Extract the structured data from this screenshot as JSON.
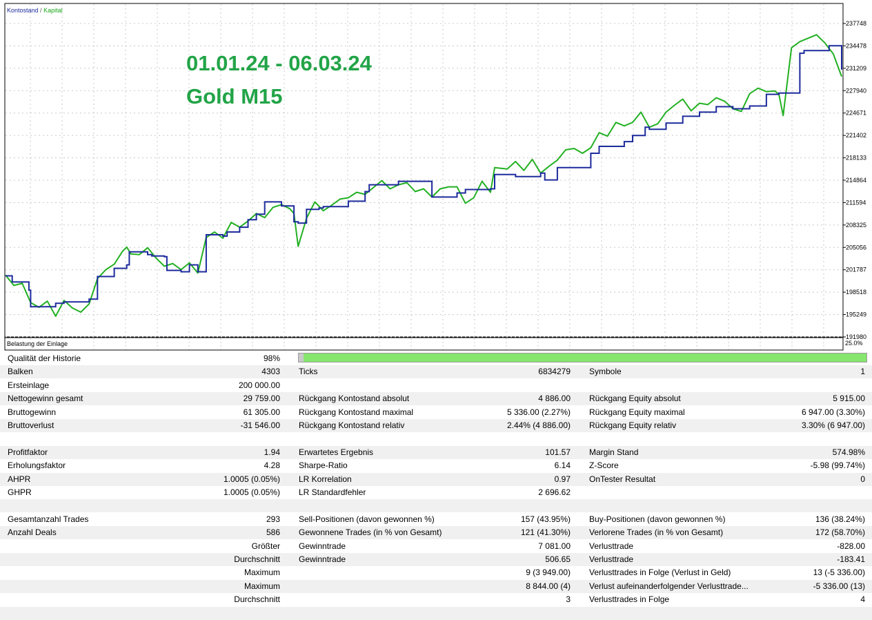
{
  "chart": {
    "legend_balance": "Kontostand",
    "legend_sep": " / ",
    "legend_equity": "Kapital",
    "overlay_line1": "01.01.24 - 06.03.24",
    "overlay_line2": "Gold M15",
    "load_label": "Belastung der Einlage",
    "load_pct": "25.0%",
    "colors": {
      "balance": "#1c2a9c",
      "equity": "#22b022",
      "overlay": "#22a447",
      "legend_equity": "#1aa51a",
      "legend_balance": "#1c2a9c"
    }
  },
  "chart_data": {
    "type": "line",
    "yticks": [
      "237748",
      "234478",
      "231209",
      "227940",
      "224671",
      "221402",
      "218133",
      "214864",
      "211594",
      "208325",
      "205056",
      "201787",
      "198518",
      "195249",
      "191980"
    ],
    "ylim": [
      191980,
      237748
    ],
    "series": [
      {
        "name": "Kontostand",
        "x": [
          0,
          0.008,
          0.028,
          0.03,
          0.04,
          0.06,
          0.07,
          0.1,
          0.11,
          0.13,
          0.145,
          0.148,
          0.17,
          0.175,
          0.19,
          0.193,
          0.21,
          0.22,
          0.23,
          0.24,
          0.26,
          0.265,
          0.28,
          0.29,
          0.3,
          0.31,
          0.33,
          0.345,
          0.35,
          0.36,
          0.375,
          0.38,
          0.41,
          0.43,
          0.435,
          0.47,
          0.5,
          0.51,
          0.54,
          0.55,
          0.58,
          0.585,
          0.61,
          0.64,
          0.645,
          0.66,
          0.7,
          0.71,
          0.74,
          0.75,
          0.765,
          0.77,
          0.79,
          0.81,
          0.83,
          0.85,
          0.87,
          0.89,
          0.91,
          0.925,
          0.95,
          0.955,
          0.985,
          1
        ],
        "y": [
          200900,
          200000,
          198800,
          196400,
          196400,
          196900,
          197100,
          197500,
          200800,
          202000,
          202500,
          204400,
          204000,
          203800,
          203700,
          201700,
          201500,
          202500,
          201500,
          206900,
          206700,
          207300,
          208000,
          209100,
          209900,
          211700,
          211100,
          208800,
          208600,
          210600,
          210800,
          211000,
          211800,
          213200,
          214200,
          214700,
          214700,
          212400,
          213000,
          213500,
          213600,
          215700,
          215400,
          215900,
          214900,
          216700,
          218800,
          219800,
          220500,
          221400,
          222600,
          222300,
          223200,
          224200,
          224800,
          225600,
          225300,
          225700,
          227400,
          227600,
          233400,
          233800,
          234500,
          231000
        ]
      },
      {
        "name": "Kapital",
        "x": [
          0,
          0.01,
          0.02,
          0.03,
          0.04,
          0.05,
          0.06,
          0.07,
          0.08,
          0.09,
          0.1,
          0.11,
          0.12,
          0.13,
          0.14,
          0.145,
          0.15,
          0.16,
          0.17,
          0.18,
          0.19,
          0.2,
          0.21,
          0.22,
          0.23,
          0.24,
          0.25,
          0.26,
          0.27,
          0.28,
          0.29,
          0.3,
          0.31,
          0.32,
          0.33,
          0.34,
          0.345,
          0.35,
          0.36,
          0.37,
          0.38,
          0.39,
          0.4,
          0.41,
          0.42,
          0.43,
          0.44,
          0.45,
          0.46,
          0.47,
          0.48,
          0.49,
          0.5,
          0.51,
          0.52,
          0.53,
          0.54,
          0.55,
          0.56,
          0.57,
          0.58,
          0.585,
          0.6,
          0.61,
          0.62,
          0.63,
          0.64,
          0.65,
          0.66,
          0.67,
          0.68,
          0.69,
          0.7,
          0.71,
          0.72,
          0.73,
          0.74,
          0.75,
          0.76,
          0.77,
          0.78,
          0.79,
          0.8,
          0.81,
          0.82,
          0.83,
          0.84,
          0.85,
          0.86,
          0.87,
          0.88,
          0.89,
          0.9,
          0.91,
          0.92,
          0.925,
          0.93,
          0.94,
          0.95,
          0.96,
          0.97,
          0.98,
          0.99,
          1
        ],
        "y": [
          201000,
          199500,
          199800,
          197000,
          196300,
          197200,
          195000,
          197300,
          196200,
          195600,
          196800,
          200500,
          201800,
          202600,
          204500,
          205100,
          204100,
          204000,
          205000,
          203500,
          202300,
          202700,
          201800,
          202800,
          201300,
          206500,
          207300,
          206400,
          208700,
          208000,
          208900,
          210000,
          209400,
          210900,
          211300,
          210700,
          210000,
          205200,
          209300,
          211700,
          210400,
          211200,
          212100,
          212300,
          213100,
          212800,
          213800,
          214800,
          213600,
          214200,
          214500,
          213200,
          213600,
          212400,
          213600,
          213900,
          213900,
          211500,
          212300,
          214700,
          213100,
          216700,
          216500,
          217600,
          216300,
          217900,
          215900,
          216900,
          217800,
          219300,
          219500,
          218800,
          219600,
          221800,
          221300,
          223300,
          222800,
          223300,
          224800,
          222600,
          223100,
          224800,
          225800,
          226700,
          225000,
          226100,
          225900,
          226900,
          226400,
          225300,
          224900,
          227500,
          228300,
          227800,
          227900,
          227400,
          224300,
          234200,
          235100,
          235600,
          236100,
          234900,
          233300,
          230000
        ]
      }
    ]
  },
  "quality": {
    "label": "Qualität der Historie",
    "value": "98%",
    "fraction": 0.98
  },
  "rows": [
    {
      "l1": "",
      "v1": "",
      "l2": "",
      "v2": "",
      "l3": "",
      "v3": ""
    },
    {
      "l1": "Balken",
      "v1": "4303",
      "l2": "Ticks",
      "v2": "6834279",
      "l3": "Symbole",
      "v3": "1"
    },
    {
      "l1": "Ersteinlage",
      "v1": "200 000.00",
      "l2": "",
      "v2": "",
      "l3": "",
      "v3": ""
    },
    {
      "l1": "Nettogewinn gesamt",
      "v1": "29 759.00",
      "l2": "Rückgang Kontostand absolut",
      "v2": "4 886.00",
      "l3": "Rückgang Equity absolut",
      "v3": "5 915.00"
    },
    {
      "l1": "Bruttogewinn",
      "v1": "61 305.00",
      "l2": "Rückgang Kontostand maximal",
      "v2": "5 336.00 (2.27%)",
      "l3": "Rückgang Equity maximal",
      "v3": "6 947.00 (3.30%)"
    },
    {
      "l1": "Bruttoverlust",
      "v1": "-31 546.00",
      "l2": "Rückgang Kontostand relativ",
      "v2": "2.44% (4 886.00)",
      "l3": "Rückgang Equity relativ",
      "v3": "3.30% (6 947.00)"
    },
    {
      "l1": "",
      "v1": "",
      "l2": "",
      "v2": "",
      "l3": "",
      "v3": ""
    },
    {
      "l1": "Profitfaktor",
      "v1": "1.94",
      "l2": "Erwartetes Ergebnis",
      "v2": "101.57",
      "l3": "Margin Stand",
      "v3": "574.98%"
    },
    {
      "l1": "Erholungsfaktor",
      "v1": "4.28",
      "l2": "Sharpe-Ratio",
      "v2": "6.14",
      "l3": "Z-Score",
      "v3": "-5.98 (99.74%)"
    },
    {
      "l1": "AHPR",
      "v1": "1.0005 (0.05%)",
      "l2": "LR Korrelation",
      "v2": "0.97",
      "l3": "OnTester Resultat",
      "v3": "0"
    },
    {
      "l1": "GHPR",
      "v1": "1.0005 (0.05%)",
      "l2": "LR Standardfehler",
      "v2": "2 696.62",
      "l3": "",
      "v3": ""
    },
    {
      "l1": "",
      "v1": "",
      "l2": "",
      "v2": "",
      "l3": "",
      "v3": ""
    },
    {
      "l1": "Gesamtanzahl Trades",
      "v1": "293",
      "l2": "Sell-Positionen (davon gewonnen %)",
      "v2": "157 (43.95%)",
      "l3": "Buy-Positionen (davon gewonnen %)",
      "v3": "136 (38.24%)"
    },
    {
      "l1": "Anzahl Deals",
      "v1": "586",
      "l2": "Gewonnene Trades (in % von Gesamt)",
      "v2": "121 (41.30%)",
      "l3": "Verlorene Trades (in % von Gesamt)",
      "v3": "172 (58.70%)"
    },
    {
      "l1": "",
      "v1": "Größter",
      "l2": "Gewinntrade",
      "v2": "7 081.00",
      "l3": "Verlusttrade",
      "v3": "-828.00"
    },
    {
      "l1": "",
      "v1": "Durchschnitt",
      "l2": "Gewinntrade",
      "v2": "506.65",
      "l3": "Verlusttrade",
      "v3": "-183.41"
    },
    {
      "l1": "",
      "v1": "Maximum",
      "l2": "",
      "v2": "9 (3 949.00)",
      "l3": "Verlusttrades in Folge (Verlust in Geld)",
      "v3": "13 (-5 336.00)"
    },
    {
      "l1": "",
      "v1": "Maximum",
      "l2": "",
      "v2": "8 844.00 (4)",
      "l3": "Verlust aufeinanderfolgender Verlusttrade...",
      "v3": "-5 336.00 (13)"
    },
    {
      "l1": "",
      "v1": "Durchschnitt",
      "l2": "",
      "v2": "3",
      "l3": "Verlusttrades in Folge",
      "v3": "4"
    },
    {
      "l1": "",
      "v1": "",
      "l2": "",
      "v2": "",
      "l3": "",
      "v3": ""
    }
  ]
}
